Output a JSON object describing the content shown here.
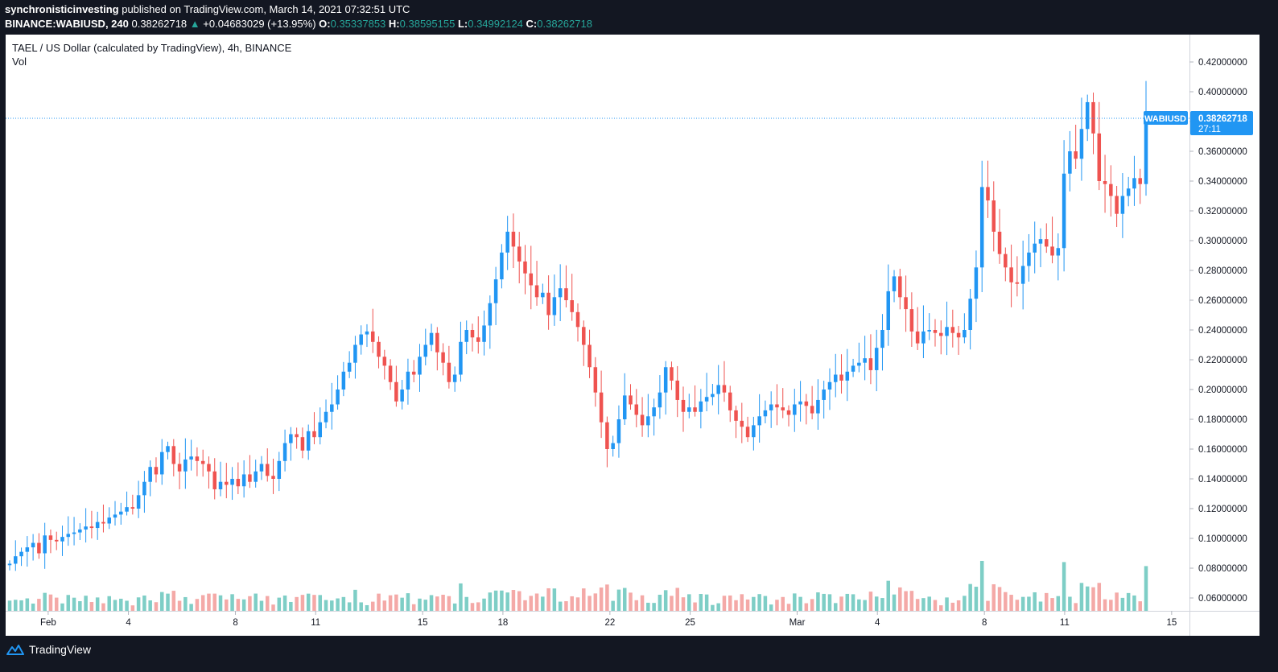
{
  "header": {
    "author": "synchronisticinvesting",
    "published_text": "published on TradingView.com, March 14, 2021 07:32:51 UTC",
    "symbol": "BINANCE:WABIUSD, 240",
    "last": "0.38262718",
    "change_arrow": "▲",
    "change": "+0.04683029 (+13.95%)",
    "o_label": "O:",
    "o_value": "0.35337853",
    "h_label": "H:",
    "h_value": "0.38595155",
    "l_label": "L:",
    "l_value": "0.34992124",
    "c_label": "C:",
    "c_value": "0.38262718"
  },
  "pane": {
    "title": "TAEL / US Dollar (calculated by TradingView), 4h, BINANCE",
    "vol_label": "Vol"
  },
  "price_tag": {
    "symbol": "WABIUSD",
    "price": "0.38262718",
    "countdown": "27:11"
  },
  "footer": {
    "brand": "TradingView",
    "logo_icon": "tradingview-logo-icon"
  },
  "colors": {
    "up": "#2196f3",
    "down": "#ef5350",
    "vol_up": "#7ecec6",
    "vol_down": "#f4a9a7",
    "tag": "#2196f3"
  },
  "chart_data": {
    "type": "candlestick",
    "title": "TAEL / US Dollar (calculated by TradingView), 4h, BINANCE",
    "interval": "4h",
    "ylim": [
      0.05,
      0.43
    ],
    "y_ticks": [
      "0.42000000",
      "0.40000000",
      "0.38000000",
      "0.36000000",
      "0.34000000",
      "0.32000000",
      "0.30000000",
      "0.28000000",
      "0.26000000",
      "0.24000000",
      "0.22000000",
      "0.20000000",
      "0.18000000",
      "0.16000000",
      "0.14000000",
      "0.12000000",
      "0.10000000",
      "0.08000000",
      "0.06000000"
    ],
    "x_ticks": [
      {
        "label": "Feb",
        "date": "2021-02-01"
      },
      {
        "label": "4",
        "date": "2021-02-04"
      },
      {
        "label": "8",
        "date": "2021-02-08"
      },
      {
        "label": "11",
        "date": "2021-02-11"
      },
      {
        "label": "15",
        "date": "2021-02-15"
      },
      {
        "label": "18",
        "date": "2021-02-18"
      },
      {
        "label": "22",
        "date": "2021-02-22"
      },
      {
        "label": "25",
        "date": "2021-02-25"
      },
      {
        "label": "Mar",
        "date": "2021-03-01"
      },
      {
        "label": "4",
        "date": "2021-03-04"
      },
      {
        "label": "8",
        "date": "2021-03-08"
      },
      {
        "label": "11",
        "date": "2021-03-11"
      },
      {
        "label": "15",
        "date": "2021-03-15"
      }
    ],
    "x_range": [
      "2021-01-30T12:00",
      "2021-03-15T16:00"
    ],
    "last_price": 0.38262718,
    "closes": [
      0.083,
      0.088,
      0.091,
      0.094,
      0.097,
      0.09,
      0.102,
      0.099,
      0.098,
      0.101,
      0.103,
      0.104,
      0.106,
      0.108,
      0.107,
      0.111,
      0.11,
      0.114,
      0.116,
      0.118,
      0.121,
      0.12,
      0.129,
      0.138,
      0.148,
      0.143,
      0.158,
      0.162,
      0.15,
      0.145,
      0.153,
      0.155,
      0.152,
      0.15,
      0.145,
      0.133,
      0.138,
      0.136,
      0.14,
      0.135,
      0.143,
      0.138,
      0.145,
      0.15,
      0.142,
      0.14,
      0.152,
      0.164,
      0.17,
      0.168,
      0.159,
      0.172,
      0.168,
      0.178,
      0.185,
      0.19,
      0.2,
      0.212,
      0.218,
      0.23,
      0.237,
      0.239,
      0.232,
      0.222,
      0.216,
      0.205,
      0.192,
      0.2,
      0.212,
      0.21,
      0.222,
      0.23,
      0.238,
      0.225,
      0.218,
      0.205,
      0.21,
      0.232,
      0.24,
      0.235,
      0.232,
      0.243,
      0.258,
      0.274,
      0.292,
      0.306,
      0.296,
      0.286,
      0.278,
      0.27,
      0.262,
      0.265,
      0.25,
      0.262,
      0.268,
      0.26,
      0.252,
      0.242,
      0.23,
      0.215,
      0.198,
      0.178,
      0.16,
      0.164,
      0.18,
      0.196,
      0.19,
      0.183,
      0.176,
      0.182,
      0.188,
      0.198,
      0.215,
      0.206,
      0.193,
      0.185,
      0.188,
      0.185,
      0.192,
      0.195,
      0.197,
      0.203,
      0.198,
      0.186,
      0.179,
      0.175,
      0.168,
      0.176,
      0.182,
      0.186,
      0.19,
      0.188,
      0.186,
      0.183,
      0.19,
      0.192,
      0.189,
      0.184,
      0.193,
      0.2,
      0.205,
      0.21,
      0.206,
      0.212,
      0.216,
      0.218,
      0.221,
      0.213,
      0.228,
      0.24,
      0.266,
      0.276,
      0.262,
      0.254,
      0.239,
      0.231,
      0.239,
      0.24,
      0.238,
      0.236,
      0.242,
      0.238,
      0.235,
      0.24,
      0.261,
      0.282,
      0.336,
      0.327,
      0.306,
      0.291,
      0.282,
      0.272,
      0.271,
      0.283,
      0.292,
      0.298,
      0.301,
      0.296,
      0.29,
      0.295,
      0.345,
      0.36,
      0.355,
      0.375,
      0.393,
      0.372,
      0.34,
      0.338,
      0.33,
      0.318,
      0.33,
      0.335,
      0.342,
      0.338,
      0.383
    ]
  }
}
